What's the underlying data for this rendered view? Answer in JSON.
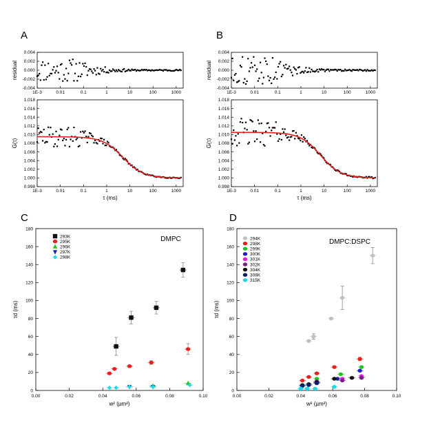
{
  "chart_data": [
    {
      "id": "A",
      "type": "scatter",
      "panel_label": "A",
      "subplots": [
        {
          "role": "residual",
          "ylabel": "residual",
          "ylim": [
            -0.004,
            0.004
          ],
          "yticks": [
            "-0.004",
            "-0.002",
            "0.000",
            "0.002",
            "0.004"
          ],
          "xscale": "log",
          "xlim": [
            0.001,
            2000
          ],
          "xticks": [
            "1E-3",
            "0.01",
            "0.1",
            "1",
            "10",
            "100",
            "1000"
          ],
          "noise_amplitude": 0.0026
        },
        {
          "role": "correlation",
          "ylabel": "G(τ)",
          "xlabel": "τ (ms)",
          "ylim": [
            0.998,
            1.018
          ],
          "yticks": [
            "0.998",
            "1.000",
            "1.002",
            "1.004",
            "1.006",
            "1.008",
            "1.010",
            "1.012",
            "1.014",
            "1.016",
            "1.018"
          ],
          "xscale": "log",
          "xlim": [
            0.001,
            2000
          ],
          "xticks": [
            "1E-3",
            "0.01",
            "0.1",
            "1",
            "10",
            "100",
            "1000"
          ],
          "fit": {
            "color": "#e0201b",
            "g0": 1.0095,
            "ginf": 1.0,
            "tau_d_ms": 5
          },
          "noise_amplitude": 0.0024
        }
      ]
    },
    {
      "id": "B",
      "type": "scatter",
      "panel_label": "B",
      "subplots": [
        {
          "role": "residual",
          "ylabel": "residual",
          "ylim": [
            -0.004,
            0.004
          ],
          "yticks": [
            "-0.004",
            "-0.002",
            "0.000",
            "0.002",
            "0.004"
          ],
          "xscale": "log",
          "xlim": [
            0.001,
            2000
          ],
          "xticks": [
            "1E-3",
            "0.01",
            "0.1",
            "1",
            "10",
            "100",
            "1000"
          ],
          "noise_amplitude": 0.0032
        },
        {
          "role": "correlation",
          "ylabel": "G(τ)",
          "xlabel": "τ (ms)",
          "ylim": [
            0.998,
            1.018
          ],
          "yticks": [
            "0.998",
            "1.000",
            "1.002",
            "1.004",
            "1.006",
            "1.008",
            "1.010",
            "1.012",
            "1.014",
            "1.016",
            "1.018"
          ],
          "xscale": "log",
          "xlim": [
            0.001,
            2000
          ],
          "xticks": [
            "1E-3",
            "0.01",
            "0.1",
            "1",
            "10",
            "100",
            "1000"
          ],
          "fit": {
            "color": "#e0201b",
            "g0": 1.0105,
            "ginf": 1.0,
            "tau_d_ms": 7
          },
          "noise_amplitude": 0.0032
        }
      ]
    },
    {
      "id": "C",
      "type": "scatter",
      "panel_label": "C",
      "annotation": "DMPC",
      "xlabel": "w² (µm²)",
      "ylabel": "τd (ms)",
      "xlim": [
        0.0,
        0.1
      ],
      "ylim": [
        0,
        180
      ],
      "xticks": [
        "0.00",
        "0.02",
        "0.04",
        "0.06",
        "0.08",
        "0.10"
      ],
      "yticks": [
        "0",
        "20",
        "40",
        "60",
        "80",
        "100",
        "120",
        "140",
        "160",
        "180"
      ],
      "legend_position": "top-left",
      "series": [
        {
          "name": "293K",
          "marker": "square",
          "color": "#111111",
          "points": [
            [
              0.048,
              49,
              10
            ],
            [
              0.057,
              81,
              7
            ],
            [
              0.072,
              92,
              7
            ],
            [
              0.088,
              134,
              8
            ]
          ]
        },
        {
          "name": "295K",
          "marker": "circle",
          "color": "#e8201a",
          "points": [
            [
              0.044,
              19,
              0
            ],
            [
              0.047,
              24,
              0
            ],
            [
              0.056,
              27,
              0
            ],
            [
              0.069,
              31,
              2
            ],
            [
              0.091,
              46,
              6
            ]
          ]
        },
        {
          "name": "296K",
          "marker": "triangle-up",
          "color": "#22c422",
          "points": [
            [
              0.07,
              5,
              0
            ],
            [
              0.091,
              8,
              0
            ]
          ]
        },
        {
          "name": "297K",
          "marker": "triangle-down",
          "color": "#1f1fc0",
          "points": [
            [
              0.056,
              4,
              0
            ],
            [
              0.07,
              4,
              0
            ]
          ]
        },
        {
          "name": "298K",
          "marker": "diamond",
          "color": "#1fd8e8",
          "points": [
            [
              0.044,
              3,
              0
            ],
            [
              0.048,
              3,
              0
            ],
            [
              0.056,
              4,
              0
            ],
            [
              0.07,
              4,
              0
            ],
            [
              0.092,
              6,
              0
            ]
          ]
        }
      ]
    },
    {
      "id": "D",
      "type": "scatter",
      "panel_label": "D",
      "annotation": "DMPC:DSPC",
      "xlabel": "w² (µm²)",
      "ylabel": "τd (ms)",
      "xlim": [
        0.0,
        0.1
      ],
      "ylim": [
        0,
        180
      ],
      "xticks": [
        "0.00",
        "0.02",
        "0.04",
        "0.06",
        "0.08",
        "0.10"
      ],
      "yticks": [
        "0",
        "20",
        "40",
        "60",
        "80",
        "100",
        "120",
        "140",
        "160",
        "180"
      ],
      "legend_position": "top-left",
      "series": [
        {
          "name": "294K",
          "marker": "circle",
          "color": "#c0c0c0",
          "points": [
            [
              0.045,
              55,
              0
            ],
            [
              0.048,
              60,
              3
            ],
            [
              0.059,
              80,
              0
            ],
            [
              0.066,
              103,
              13
            ],
            [
              0.085,
              150,
              9
            ]
          ]
        },
        {
          "name": "298K",
          "marker": "circle",
          "color": "#e8201a",
          "points": [
            [
              0.041,
              11,
              0
            ],
            [
              0.045,
              15,
              0
            ],
            [
              0.05,
              19,
              0
            ],
            [
              0.061,
              26,
              0
            ],
            [
              0.077,
              35,
              2
            ]
          ]
        },
        {
          "name": "299K",
          "marker": "circle",
          "color": "#22c422",
          "points": [
            [
              0.05,
              13,
              0
            ],
            [
              0.065,
              18,
              0
            ],
            [
              0.078,
              26,
              0
            ]
          ]
        },
        {
          "name": "300K",
          "marker": "circle",
          "color": "#1f1fc0",
          "points": [
            [
              0.063,
              13,
              0
            ],
            [
              0.077,
              22,
              0
            ]
          ]
        },
        {
          "name": "301K",
          "marker": "circle",
          "color": "#e020e0",
          "points": [
            [
              0.066,
              13,
              0
            ],
            [
              0.078,
              16,
              0
            ]
          ]
        },
        {
          "name": "302K",
          "marker": "circle",
          "color": "#7a1f8a",
          "points": [
            [
              0.05,
              10,
              0
            ],
            [
              0.066,
              11,
              0
            ],
            [
              0.078,
              14,
              0
            ]
          ]
        },
        {
          "name": "304K",
          "marker": "circle",
          "color": "#111111",
          "points": [
            [
              0.041,
              6,
              0
            ],
            [
              0.045,
              7,
              0
            ],
            [
              0.05,
              9,
              0
            ],
            [
              0.061,
              13,
              0
            ],
            [
              0.072,
              14,
              0
            ]
          ]
        },
        {
          "name": "308K",
          "marker": "circle",
          "color": "#0e1e6e",
          "points": [
            [
              0.041,
              5,
              0
            ],
            [
              0.045,
              6,
              0
            ],
            [
              0.05,
              8,
              0
            ]
          ]
        },
        {
          "name": "315K",
          "marker": "circle",
          "color": "#1fd8e8",
          "points": [
            [
              0.04,
              2,
              0
            ],
            [
              0.044,
              2,
              0
            ],
            [
              0.049,
              2,
              0
            ],
            [
              0.061,
              4,
              0
            ]
          ]
        }
      ]
    }
  ]
}
